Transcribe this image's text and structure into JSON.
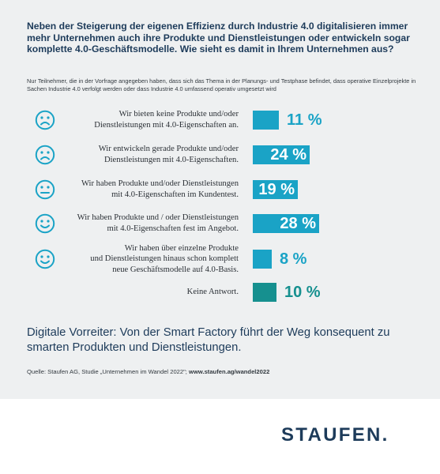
{
  "title": "Neben der Steigerung der eigenen Effizienz durch Industrie 4.0 digitalisieren immer mehr Unternehmen auch ihre Produkte und Dienstleistungen oder entwickeln sogar komplette 4.0-Geschäftsmodelle. Wie sieht es damit in Ihrem Unternehmen aus?",
  "subtitle": "Nur Teilnehmer, die in der Vorfrage angegeben haben, dass sich das Thema in der Planungs- und Testphase befindet, dass operative Einzelprojekte in Sachen Industrie 4.0 verfolgt werden oder dass Industrie 4.0 umfassend operativ umgesetzt wird",
  "chart_data": {
    "type": "bar",
    "orientation": "horizontal",
    "unit": "%",
    "categories": [
      "Wir bieten keine Produkte und/oder Dienstleistungen mit 4.0-Eigenschaften an.",
      "Wir entwickeln gerade Produkte und/oder Dienstleistungen mit 4.0-Eigenschaften.",
      "Wir haben Produkte und/oder Dienstleistungen mit 4.0-Eigenschaften im Kundentest.",
      "Wir haben Produkte und / oder Dienstleistungen mit 4.0-Eigenschaften fest im Angebot.",
      "Wir haben über einzelne Produkte und Dienstleistungen hinaus schon komplett neue Geschäftsmodelle auf 4.0-Basis.",
      "Keine Antwort."
    ],
    "category_lines": [
      [
        "Wir bieten keine Produkte und/oder",
        "Dienstleistungen mit 4.0-Eigenschaften an."
      ],
      [
        "Wir entwickeln gerade Produkte und/oder",
        "Dienstleistungen mit 4.0-Eigenschaften."
      ],
      [
        "Wir haben Produkte und/oder Dienstleistungen",
        "mit 4.0-Eigenschaften im Kundentest."
      ],
      [
        "Wir haben Produkte und / oder Dienstleistungen",
        "mit 4.0-Eigenschaften fest im Angebot."
      ],
      [
        "Wir haben über einzelne Produkte",
        "und Dienstleistungen hinaus schon komplett",
        "neue Geschäftsmodelle auf 4.0-Basis."
      ],
      [
        "Keine Antwort."
      ]
    ],
    "values": [
      11,
      24,
      19,
      28,
      8,
      10
    ],
    "value_labels": [
      "11 %",
      "24 %",
      "19 %",
      "28 %",
      "8 %",
      "10 %"
    ],
    "icons": [
      "sad-face-icon",
      "sad-face-icon",
      "neutral-face-icon",
      "smiling-face-icon",
      "smiling-face-icon",
      ""
    ],
    "colors": [
      "#1aa3c6",
      "#1aa3c6",
      "#1aa3c6",
      "#1aa3c6",
      "#1aa3c6",
      "#16908f"
    ],
    "label_inside_bar": [
      false,
      true,
      true,
      true,
      false,
      false
    ]
  },
  "conclusion": "Digitale Vorreiter: Von der Smart Factory führt der Weg konsequent zu smarten Produkten und Dienstleistungen.",
  "source_prefix": "Quelle: Staufen AG, Studie „Unternehmen im Wandel 2022\"; ",
  "source_link": "www.staufen.ag/wandel2022",
  "brand": "STAUFEN."
}
